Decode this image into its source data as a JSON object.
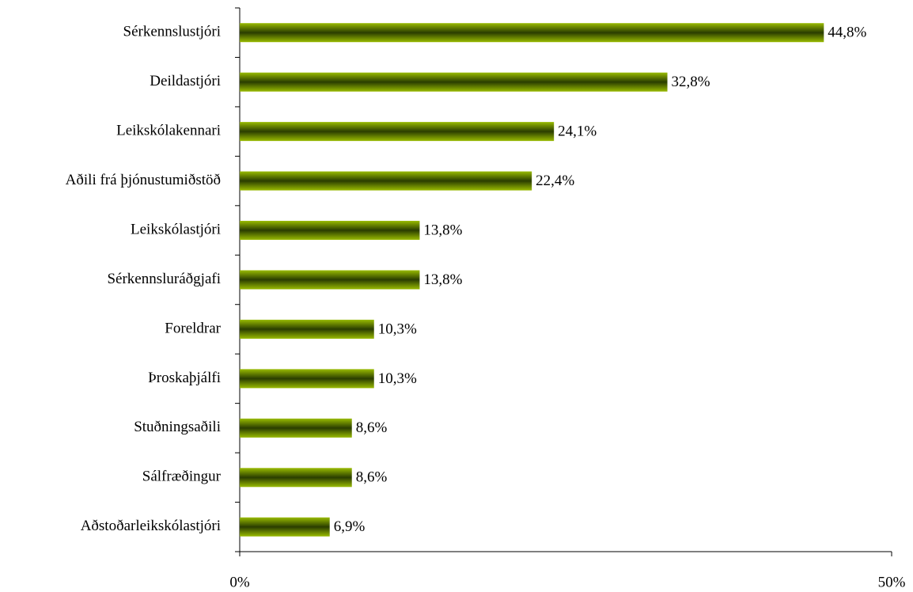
{
  "chart_data": {
    "type": "bar",
    "orientation": "horizontal",
    "categories": [
      "Sérkennslustjóri",
      "Deildastjóri",
      "Leikskólakennari",
      "Aðili frá þjónustumiðstöð",
      "Leikskólastjóri",
      "Sérkennsluráðgjafi",
      "Foreldrar",
      "Þroskaþjálfi",
      "Stuðningsaðili",
      "Sálfræðingur",
      "Aðstoðarleikskólastjóri"
    ],
    "values": [
      44.8,
      32.8,
      24.1,
      22.4,
      13.8,
      13.8,
      10.3,
      10.3,
      8.6,
      8.6,
      6.9
    ],
    "value_labels": [
      "44,8%",
      "32,8%",
      "24,1%",
      "22,4%",
      "13,8%",
      "13,8%",
      "10,3%",
      "10,3%",
      "8,6%",
      "8,6%",
      "6,9%"
    ],
    "color": "#99bb00",
    "xlim": [
      0,
      50
    ],
    "xticks": [
      {
        "value": 0,
        "label": "0%"
      },
      {
        "value": 50,
        "label": "50%"
      }
    ]
  }
}
